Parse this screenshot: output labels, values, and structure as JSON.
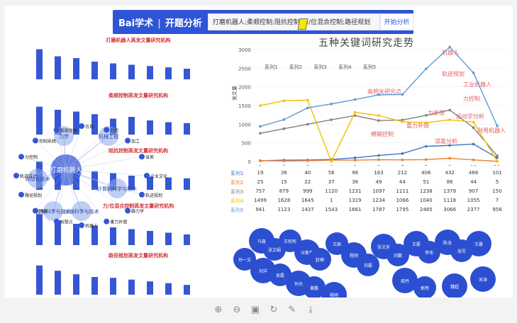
{
  "header": {
    "logo_text": "Bai学术",
    "logo_sub": "开题分析",
    "search_value": "打磨机器人;柔顺控制;阻抗控制;力/位混合控制;路径规划",
    "search_button": "开始分析"
  },
  "left": {
    "panels": [
      {
        "title": "打磨机器人高发文量研究机构",
        "values": [
          68,
          52,
          48,
          40,
          36,
          33,
          30,
          27,
          24
        ]
      },
      {
        "title": "柔顺控制高发文量研究机构",
        "values": [
          63,
          56,
          52,
          46,
          36,
          40,
          32,
          28,
          26
        ]
      },
      {
        "title": "阻抗控制高发文量研究机构",
        "values": [
          64,
          52,
          44,
          42,
          38,
          32,
          30,
          28,
          26
        ]
      },
      {
        "title": "力/位混合控制高发文量研究机构",
        "values": [
          70,
          56,
          48,
          44,
          40,
          36,
          32,
          28,
          24
        ]
      },
      {
        "title": "路径规划高发文量研究机构",
        "values": [
          66,
          54,
          46,
          40,
          38,
          34,
          30,
          26,
          22
        ]
      }
    ],
    "network": {
      "center": "打磨机器人",
      "nodes": [
        "力学",
        "机械工程",
        "自动化技术",
        "计算机科学与技术",
        "仪器科学与技术",
        "控制科学与技术"
      ],
      "leaves": [
        "企业文化",
        "轨迹规划",
        "静力学",
        "重力补偿",
        "机器人",
        "有限元",
        "刚度",
        "路径规划",
        "轨迹设计",
        "力控制",
        "控制系统",
        "智能控制",
        "仿真",
        "力矩",
        "加工",
        "误差"
      ]
    }
  },
  "chart_data": {
    "type": "line",
    "title": "五种关键词研究走势",
    "ylabel": "发文量",
    "categories": [
      "1",
      "2",
      "3",
      "4",
      "5",
      "6",
      "7",
      "8",
      "9",
      "10",
      "11"
    ],
    "ylim": [
      0,
      3000
    ],
    "series": [
      {
        "name": "系列1",
        "values": [
          19,
          36,
          40,
          56,
          98,
          163,
          212,
          406,
          432,
          466,
          101
        ],
        "color": "#4472c4"
      },
      {
        "name": "系列2",
        "values": [
          25,
          15,
          22,
          37,
          36,
          49,
          44,
          51,
          86,
          44,
          5
        ],
        "color": "#ed7d31"
      },
      {
        "name": "系列3",
        "values": [
          757,
          879,
          999,
          1120,
          1231,
          1097,
          1111,
          1238,
          1379,
          907,
          150
        ],
        "color": "#7f7f7f"
      },
      {
        "name": "系列4",
        "values": [
          1499,
          1628,
          1645,
          1,
          1319,
          1234,
          1066,
          1040,
          1118,
          1055,
          7
        ],
        "color": "#f2c100"
      },
      {
        "name": "系列5",
        "values": [
          941,
          1123,
          1437,
          1543,
          1661,
          1787,
          1795,
          2485,
          3066,
          2377,
          956
        ],
        "color": "#5b9bd5"
      }
    ]
  },
  "right": {
    "stream_labels": [
      "机器人",
      "轨迹规划",
      "工业机器人",
      "高相关研究点",
      "力控制",
      "力反馈",
      "运动学分析",
      "重力补偿",
      "耐用机器人",
      "模糊控制",
      "误差分析"
    ],
    "people": [
      "马鑫",
      "张文娟",
      "王彤彤",
      "汪斯博",
      "赵楠",
      "王辰",
      "程刚",
      "刘磊",
      "张文安",
      "刘鹏",
      "王磊",
      "李伟",
      "陈龙",
      "张军",
      "王晨",
      "孙一文",
      "刘洋",
      "吴磊",
      "孙光",
      "黄鹏",
      "杨明",
      "周丹",
      "郭亮",
      "魏超",
      "宋涛"
    ]
  },
  "toolbar": {
    "icons": [
      "zoom-in-icon",
      "zoom-out-icon",
      "fit-icon",
      "rotate-icon",
      "pen-icon",
      "download-icon"
    ]
  }
}
